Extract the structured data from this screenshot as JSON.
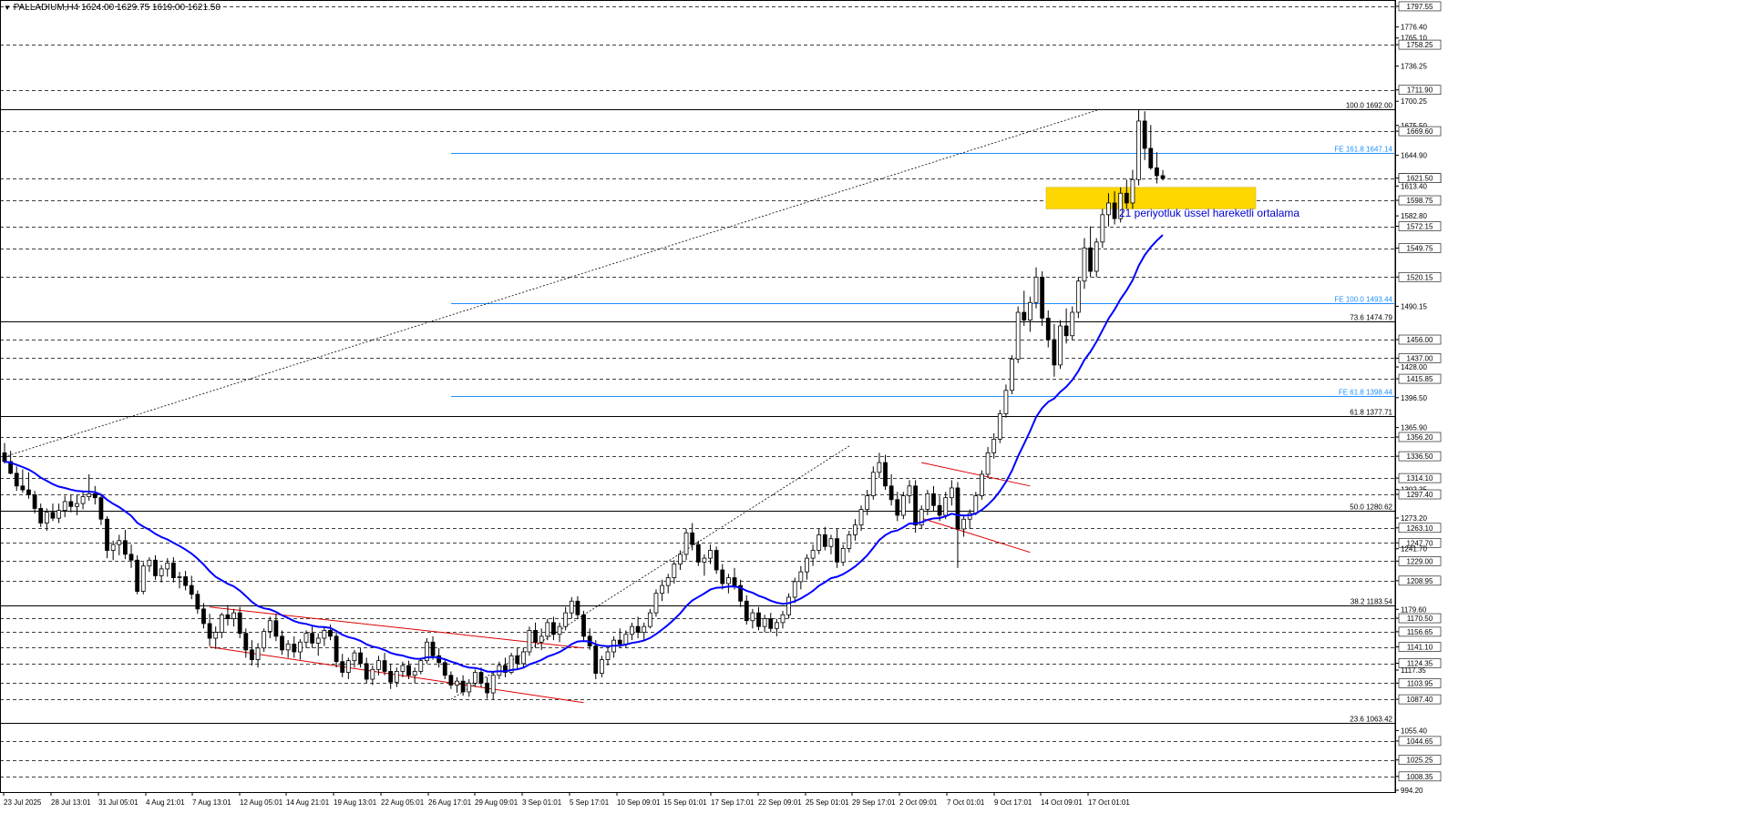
{
  "header": {
    "symbol_text": "PALLADIUM,H4",
    "ohlc_text": "1624.00 1629.75 1619.00 1621.50"
  },
  "colors": {
    "background": "#ffffff",
    "candle_bull": "#000000",
    "candle_bear": "#000000",
    "ema_line": "#0000ff",
    "fib_line": "#000000",
    "fe_line": "#1e90ff",
    "channel": "#dd0000",
    "zone": "#ffd700",
    "annotation": "#0000cc"
  },
  "chart_data": {
    "type": "candlestick",
    "title": "",
    "xlabel": "",
    "ylabel": "",
    "ylim": [
      994.2,
      1797.5
    ],
    "grid": true,
    "y_ticks": [
      "1797.55",
      "1776.40",
      "1765.10",
      "1758.25",
      "1736.25",
      "1711.90",
      "1700.25",
      "1675.50",
      "1669.60",
      "1644.90",
      "1621.50",
      "1613.40",
      "1598.75",
      "1582.80",
      "1572.15",
      "1549.75",
      "1520.15",
      "1490.15",
      "1456.00",
      "1437.00",
      "1428.00",
      "1415.85",
      "1396.50",
      "1365.90",
      "1356.20",
      "1336.50",
      "1314.10",
      "1302.35",
      "1297.40",
      "1273.20",
      "1263.10",
      "1247.70",
      "1241.70",
      "1229.00",
      "1208.95",
      "1179.60",
      "1170.50",
      "1156.65",
      "1141.10",
      "1124.35",
      "1117.35",
      "1103.95",
      "1087.40",
      "1055.40",
      "1044.65",
      "1025.25",
      "1008.35",
      "994.20"
    ],
    "highlighted_ticks": [
      "1797.55",
      "1758.25",
      "1711.90",
      "1669.60",
      "1621.50",
      "1598.75",
      "1572.15",
      "1549.75",
      "1520.15",
      "1456.00",
      "1437.00",
      "1415.85",
      "1356.20",
      "1336.50",
      "1314.10",
      "1297.40",
      "1263.10",
      "1247.70",
      "1229.00",
      "1208.95",
      "1170.50",
      "1156.65",
      "1141.10",
      "1124.35",
      "1103.95",
      "1087.40",
      "1044.65",
      "1025.25",
      "1008.35"
    ],
    "x_tick_labels": [
      "23 Jul 2025",
      "28 Jul 13:01",
      "31 Jul 05:01",
      "4 Aug 21:01",
      "7 Aug 13:01",
      "12 Aug 05:01",
      "14 Aug 21:01",
      "19 Aug 13:01",
      "22 Aug 05:01",
      "26 Aug 17:01",
      "29 Aug 09:01",
      "3 Sep 01:01",
      "5 Sep 17:01",
      "10 Sep 09:01",
      "15 Sep 01:01",
      "17 Sep 17:01",
      "22 Sep 09:01",
      "25 Sep 01:01",
      "29 Sep 17:01",
      "2 Oct 09:01",
      "7 Oct 01:01",
      "9 Oct 17:01",
      "14 Oct 09:01",
      "17 Oct 01:01"
    ],
    "fibonacci_levels": [
      {
        "label": "100.0 1692.00",
        "value": 1692.0
      },
      {
        "label": "73.6 1474.79",
        "value": 1474.79
      },
      {
        "label": "61.8 1377.71",
        "value": 1377.71
      },
      {
        "label": "50.0 1280.62",
        "value": 1280.62
      },
      {
        "label": "38.2 1183.54",
        "value": 1183.54
      },
      {
        "label": "23.6 1063.42",
        "value": 1063.42
      }
    ],
    "fibonacci_expansion_levels": [
      {
        "label": "FE 161.8 1647.14",
        "value": 1647.14
      },
      {
        "label": "FE 100.0 1493.44",
        "value": 1493.44
      },
      {
        "label": "FE 61.8 1398.44",
        "value": 1398.44
      }
    ],
    "fib_trendline": {
      "from": [
        "23 Jul 2025",
        1336.0
      ],
      "to": [
        "16 Oct 13:01",
        1692.0
      ]
    },
    "fe_trendline": {
      "from": [
        "26 Aug 17:01",
        1087.4
      ],
      "to": [
        "24 Sep 20:01",
        1347.0
      ]
    },
    "support_zone": {
      "low": 1590,
      "high": 1612,
      "from": "14 Oct 05:01",
      "to": "20 Oct 05:01"
    },
    "annotation": "21 periyotluk üssel hareketli ortalama",
    "current_price": 1621.5,
    "ohlc": [
      [
        1340,
        1350,
        1329,
        1331
      ],
      [
        1331,
        1342,
        1318,
        1319
      ],
      [
        1319,
        1326,
        1301,
        1306
      ],
      [
        1306,
        1323,
        1299,
        1302
      ],
      [
        1302,
        1320,
        1293,
        1297
      ],
      [
        1297,
        1301,
        1278,
        1283
      ],
      [
        1283,
        1288,
        1264,
        1268
      ],
      [
        1268,
        1283,
        1260,
        1279
      ],
      [
        1279,
        1288,
        1270,
        1273
      ],
      [
        1273,
        1288,
        1268,
        1281
      ],
      [
        1281,
        1296,
        1274,
        1290
      ],
      [
        1290,
        1297,
        1279,
        1285
      ],
      [
        1285,
        1297,
        1276,
        1288
      ],
      [
        1288,
        1300,
        1282,
        1295
      ],
      [
        1295,
        1318,
        1291,
        1298
      ],
      [
        1298,
        1306,
        1287,
        1294
      ],
      [
        1294,
        1298,
        1266,
        1272
      ],
      [
        1272,
        1275,
        1232,
        1240
      ],
      [
        1240,
        1250,
        1230,
        1246
      ],
      [
        1246,
        1256,
        1235,
        1250
      ],
      [
        1250,
        1261,
        1231,
        1236
      ],
      [
        1236,
        1246,
        1222,
        1230
      ],
      [
        1230,
        1235,
        1195,
        1198
      ],
      [
        1198,
        1228,
        1195,
        1224
      ],
      [
        1224,
        1233,
        1218,
        1230
      ],
      [
        1230,
        1235,
        1210,
        1214
      ],
      [
        1214,
        1225,
        1207,
        1221
      ],
      [
        1221,
        1232,
        1213,
        1227
      ],
      [
        1227,
        1233,
        1207,
        1212
      ],
      [
        1212,
        1218,
        1201,
        1213
      ],
      [
        1213,
        1219,
        1199,
        1204
      ],
      [
        1204,
        1214,
        1190,
        1195
      ],
      [
        1195,
        1199,
        1175,
        1180
      ],
      [
        1180,
        1186,
        1160,
        1165
      ],
      [
        1165,
        1175,
        1142,
        1150
      ],
      [
        1150,
        1162,
        1139,
        1156
      ],
      [
        1156,
        1176,
        1150,
        1174
      ],
      [
        1174,
        1184,
        1163,
        1170
      ],
      [
        1170,
        1180,
        1162,
        1176
      ],
      [
        1176,
        1182,
        1150,
        1155
      ],
      [
        1155,
        1160,
        1130,
        1138
      ],
      [
        1138,
        1148,
        1122,
        1128
      ],
      [
        1128,
        1145,
        1120,
        1140
      ],
      [
        1140,
        1160,
        1136,
        1157
      ],
      [
        1157,
        1172,
        1150,
        1168
      ],
      [
        1168,
        1175,
        1147,
        1152
      ],
      [
        1152,
        1158,
        1133,
        1138
      ],
      [
        1138,
        1148,
        1130,
        1144
      ],
      [
        1144,
        1152,
        1130,
        1136
      ],
      [
        1136,
        1149,
        1128,
        1146
      ],
      [
        1146,
        1158,
        1140,
        1155
      ],
      [
        1155,
        1162,
        1140,
        1145
      ],
      [
        1145,
        1155,
        1132,
        1150
      ],
      [
        1150,
        1161,
        1142,
        1158
      ],
      [
        1158,
        1164,
        1148,
        1152
      ],
      [
        1152,
        1156,
        1120,
        1126
      ],
      [
        1126,
        1134,
        1110,
        1115
      ],
      [
        1115,
        1130,
        1108,
        1127
      ],
      [
        1127,
        1138,
        1120,
        1135
      ],
      [
        1135,
        1140,
        1120,
        1124
      ],
      [
        1124,
        1130,
        1104,
        1108
      ],
      [
        1108,
        1122,
        1102,
        1118
      ],
      [
        1118,
        1132,
        1112,
        1127
      ],
      [
        1127,
        1135,
        1112,
        1116
      ],
      [
        1116,
        1124,
        1098,
        1105
      ],
      [
        1105,
        1120,
        1100,
        1116
      ],
      [
        1116,
        1126,
        1110,
        1122
      ],
      [
        1122,
        1127,
        1108,
        1112
      ],
      [
        1112,
        1120,
        1104,
        1116
      ],
      [
        1116,
        1130,
        1113,
        1127
      ],
      [
        1127,
        1150,
        1124,
        1146
      ],
      [
        1146,
        1152,
        1128,
        1132
      ],
      [
        1132,
        1140,
        1120,
        1125
      ],
      [
        1125,
        1128,
        1108,
        1112
      ],
      [
        1112,
        1116,
        1098,
        1102
      ],
      [
        1102,
        1110,
        1094,
        1106
      ],
      [
        1106,
        1112,
        1091,
        1095
      ],
      [
        1095,
        1108,
        1090,
        1104
      ],
      [
        1104,
        1118,
        1100,
        1115
      ],
      [
        1115,
        1120,
        1100,
        1104
      ],
      [
        1104,
        1110,
        1088,
        1094
      ],
      [
        1094,
        1115,
        1087,
        1112
      ],
      [
        1112,
        1126,
        1108,
        1122
      ],
      [
        1122,
        1130,
        1110,
        1115
      ],
      [
        1115,
        1135,
        1113,
        1132
      ],
      [
        1132,
        1140,
        1118,
        1124
      ],
      [
        1124,
        1140,
        1120,
        1136
      ],
      [
        1136,
        1162,
        1132,
        1158
      ],
      [
        1158,
        1166,
        1140,
        1146
      ],
      [
        1146,
        1160,
        1138,
        1152
      ],
      [
        1152,
        1170,
        1148,
        1166
      ],
      [
        1166,
        1172,
        1148,
        1154
      ],
      [
        1154,
        1166,
        1146,
        1162
      ],
      [
        1162,
        1182,
        1158,
        1176
      ],
      [
        1176,
        1192,
        1170,
        1188
      ],
      [
        1188,
        1193,
        1170,
        1174
      ],
      [
        1174,
        1178,
        1148,
        1152
      ],
      [
        1152,
        1160,
        1138,
        1142
      ],
      [
        1142,
        1148,
        1108,
        1114
      ],
      [
        1114,
        1132,
        1110,
        1128
      ],
      [
        1128,
        1140,
        1122,
        1136
      ],
      [
        1136,
        1152,
        1130,
        1148
      ],
      [
        1148,
        1160,
        1140,
        1144
      ],
      [
        1144,
        1158,
        1140,
        1154
      ],
      [
        1154,
        1166,
        1148,
        1162
      ],
      [
        1162,
        1172,
        1150,
        1156
      ],
      [
        1156,
        1166,
        1148,
        1162
      ],
      [
        1162,
        1180,
        1160,
        1176
      ],
      [
        1176,
        1200,
        1172,
        1196
      ],
      [
        1196,
        1210,
        1188,
        1204
      ],
      [
        1204,
        1216,
        1196,
        1212
      ],
      [
        1212,
        1230,
        1206,
        1226
      ],
      [
        1226,
        1240,
        1220,
        1236
      ],
      [
        1236,
        1262,
        1230,
        1258
      ],
      [
        1258,
        1268,
        1240,
        1246
      ],
      [
        1246,
        1250,
        1224,
        1228
      ],
      [
        1228,
        1236,
        1214,
        1232
      ],
      [
        1232,
        1246,
        1226,
        1240
      ],
      [
        1240,
        1244,
        1216,
        1220
      ],
      [
        1220,
        1226,
        1200,
        1206
      ],
      [
        1206,
        1216,
        1196,
        1212
      ],
      [
        1212,
        1222,
        1200,
        1204
      ],
      [
        1204,
        1210,
        1182,
        1188
      ],
      [
        1188,
        1194,
        1164,
        1168
      ],
      [
        1168,
        1180,
        1160,
        1176
      ],
      [
        1176,
        1182,
        1158,
        1162
      ],
      [
        1162,
        1174,
        1156,
        1170
      ],
      [
        1170,
        1176,
        1156,
        1160
      ],
      [
        1160,
        1170,
        1152,
        1166
      ],
      [
        1166,
        1178,
        1160,
        1174
      ],
      [
        1174,
        1196,
        1170,
        1192
      ],
      [
        1192,
        1212,
        1186,
        1208
      ],
      [
        1208,
        1224,
        1200,
        1218
      ],
      [
        1218,
        1236,
        1210,
        1232
      ],
      [
        1232,
        1246,
        1224,
        1240
      ],
      [
        1240,
        1262,
        1236,
        1256
      ],
      [
        1256,
        1264,
        1240,
        1244
      ],
      [
        1244,
        1256,
        1236,
        1252
      ],
      [
        1252,
        1262,
        1222,
        1228
      ],
      [
        1228,
        1246,
        1224,
        1242
      ],
      [
        1242,
        1260,
        1238,
        1256
      ],
      [
        1256,
        1272,
        1250,
        1266
      ],
      [
        1266,
        1286,
        1260,
        1282
      ],
      [
        1282,
        1302,
        1276,
        1296
      ],
      [
        1296,
        1326,
        1292,
        1320
      ],
      [
        1320,
        1340,
        1314,
        1330
      ],
      [
        1330,
        1338,
        1302,
        1306
      ],
      [
        1306,
        1318,
        1286,
        1292
      ],
      [
        1292,
        1300,
        1270,
        1276
      ],
      [
        1276,
        1300,
        1272,
        1296
      ],
      [
        1296,
        1312,
        1288,
        1306
      ],
      [
        1306,
        1312,
        1258,
        1266
      ],
      [
        1266,
        1286,
        1262,
        1282
      ],
      [
        1282,
        1302,
        1276,
        1298
      ],
      [
        1298,
        1306,
        1280,
        1286
      ],
      [
        1286,
        1296,
        1270,
        1276
      ],
      [
        1276,
        1300,
        1272,
        1294
      ],
      [
        1294,
        1312,
        1286,
        1304
      ],
      [
        1304,
        1310,
        1222,
        1262
      ],
      [
        1262,
        1276,
        1254,
        1272
      ],
      [
        1272,
        1282,
        1262,
        1278
      ],
      [
        1278,
        1300,
        1276,
        1296
      ],
      [
        1296,
        1322,
        1292,
        1318
      ],
      [
        1318,
        1346,
        1314,
        1340
      ],
      [
        1340,
        1360,
        1334,
        1354
      ],
      [
        1354,
        1384,
        1350,
        1380
      ],
      [
        1380,
        1410,
        1376,
        1404
      ],
      [
        1404,
        1440,
        1400,
        1436
      ],
      [
        1436,
        1490,
        1432,
        1484
      ],
      [
        1484,
        1506,
        1470,
        1476
      ],
      [
        1476,
        1500,
        1464,
        1494
      ],
      [
        1494,
        1530,
        1488,
        1520
      ],
      [
        1520,
        1526,
        1470,
        1478
      ],
      [
        1478,
        1486,
        1448,
        1456
      ],
      [
        1456,
        1472,
        1418,
        1430
      ],
      [
        1430,
        1476,
        1426,
        1470
      ],
      [
        1470,
        1488,
        1452,
        1460
      ],
      [
        1460,
        1490,
        1456,
        1484
      ],
      [
        1484,
        1520,
        1478,
        1516
      ],
      [
        1516,
        1560,
        1508,
        1550
      ],
      [
        1550,
        1572,
        1520,
        1526
      ],
      [
        1526,
        1560,
        1520,
        1556
      ],
      [
        1556,
        1590,
        1550,
        1584
      ],
      [
        1584,
        1606,
        1572,
        1596
      ],
      [
        1596,
        1608,
        1574,
        1580
      ],
      [
        1580,
        1612,
        1576,
        1606
      ],
      [
        1606,
        1620,
        1590,
        1596
      ],
      [
        1596,
        1630,
        1590,
        1620
      ],
      [
        1620,
        1692,
        1614,
        1680
      ],
      [
        1680,
        1690,
        1640,
        1652
      ],
      [
        1652,
        1676,
        1630,
        1632
      ],
      [
        1632,
        1648,
        1616,
        1624
      ],
      [
        1624,
        1629.75,
        1619,
        1621.5
      ]
    ],
    "channels": [
      {
        "upper": [
          [
            34,
            1182
          ],
          [
            96,
            1140
          ]
        ],
        "lower": [
          [
            34,
            1141
          ],
          [
            96,
            1084
          ]
        ]
      },
      {
        "upper": [
          [
            152,
            1330
          ],
          [
            170,
            1306
          ]
        ],
        "lower": [
          [
            152,
            1273
          ],
          [
            170,
            1238
          ]
        ]
      }
    ]
  }
}
